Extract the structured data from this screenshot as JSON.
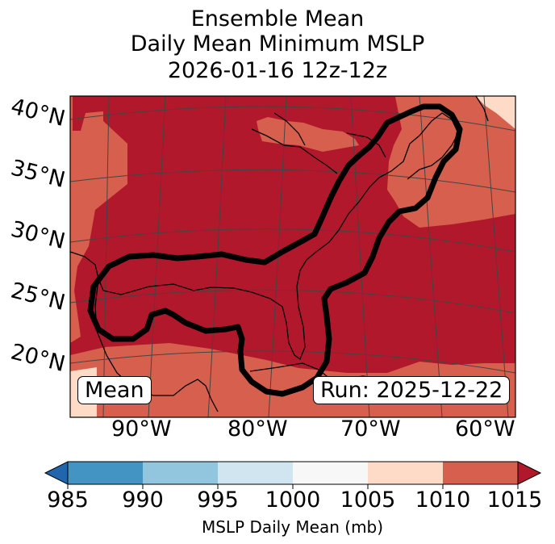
{
  "title": {
    "line1": "Ensemble Mean",
    "line2": "Daily Mean Minimum MSLP",
    "line3": "2026-01-16 12z-12z"
  },
  "map": {
    "lat_labels": [
      "40°N",
      "35°N",
      "30°N",
      "25°N",
      "20°N"
    ],
    "lon_labels": [
      "90°W",
      "80°W",
      "70°W",
      "60°W"
    ],
    "left_box": "Mean",
    "right_box": "Run: 2025-12-22",
    "colors": {
      "band_1005_1010": "#fddbc7",
      "band_1010_1015": "#d6604d",
      "band_over_1015": "#b2182b",
      "contour": "#000000",
      "coast": "#000000",
      "grid": "#444444"
    }
  },
  "colorbar": {
    "label": "MSLP Daily Mean (mb)",
    "ticks": [
      "985",
      "990",
      "995",
      "1000",
      "1005",
      "1010",
      "1015"
    ],
    "colors": [
      "#4393c3",
      "#92c5de",
      "#d1e5f0",
      "#f7f7f7",
      "#fddbc7",
      "#d6604d"
    ],
    "under_color": "#2166ac",
    "over_color": "#b2182b"
  }
}
